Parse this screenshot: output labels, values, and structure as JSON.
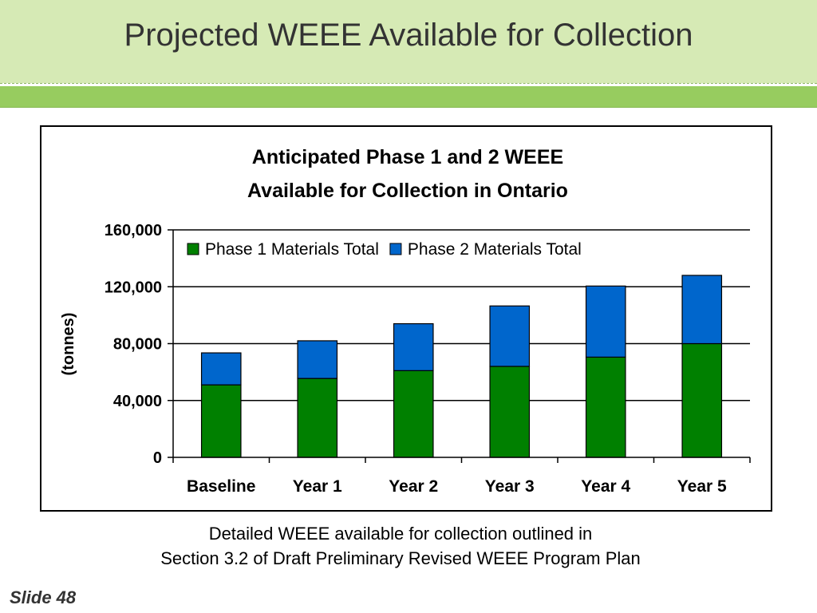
{
  "slide": {
    "title": "Projected WEEE Available for Collection",
    "note_line1": "Detailed WEEE available for collection outlined in",
    "note_line2": "Section 3.2 of Draft Preliminary Revised WEEE Program Plan",
    "slide_number": "Slide 48"
  },
  "colors": {
    "title_band": "#d6eab5",
    "accent_bar": "#97cc5f",
    "phase1": "#008000",
    "phase2": "#0066cc"
  },
  "chart_data": {
    "type": "bar",
    "stacked": true,
    "title_line1": "Anticipated Phase 1 and 2 WEEE",
    "title_line2": "Available for Collection in Ontario",
    "ylabel": "(tonnes)",
    "xlabel": "",
    "ylim": [
      0,
      160000
    ],
    "yticks": [
      "0",
      "40,000",
      "80,000",
      "120,000",
      "160,000"
    ],
    "ytick_values": [
      0,
      40000,
      80000,
      120000,
      160000
    ],
    "categories": [
      "Baseline",
      "Year 1",
      "Year 2",
      "Year 3",
      "Year 4",
      "Year 5"
    ],
    "series": [
      {
        "name": "Phase 1 Materials Total",
        "color": "#008000",
        "values": [
          51000,
          55500,
          61000,
          64000,
          70500,
          80000
        ]
      },
      {
        "name": "Phase 2 Materials Total",
        "color": "#0066cc",
        "values": [
          22500,
          26500,
          33000,
          42500,
          50000,
          48000
        ]
      }
    ],
    "grid": true,
    "legend_position": "top-left inside plot"
  }
}
